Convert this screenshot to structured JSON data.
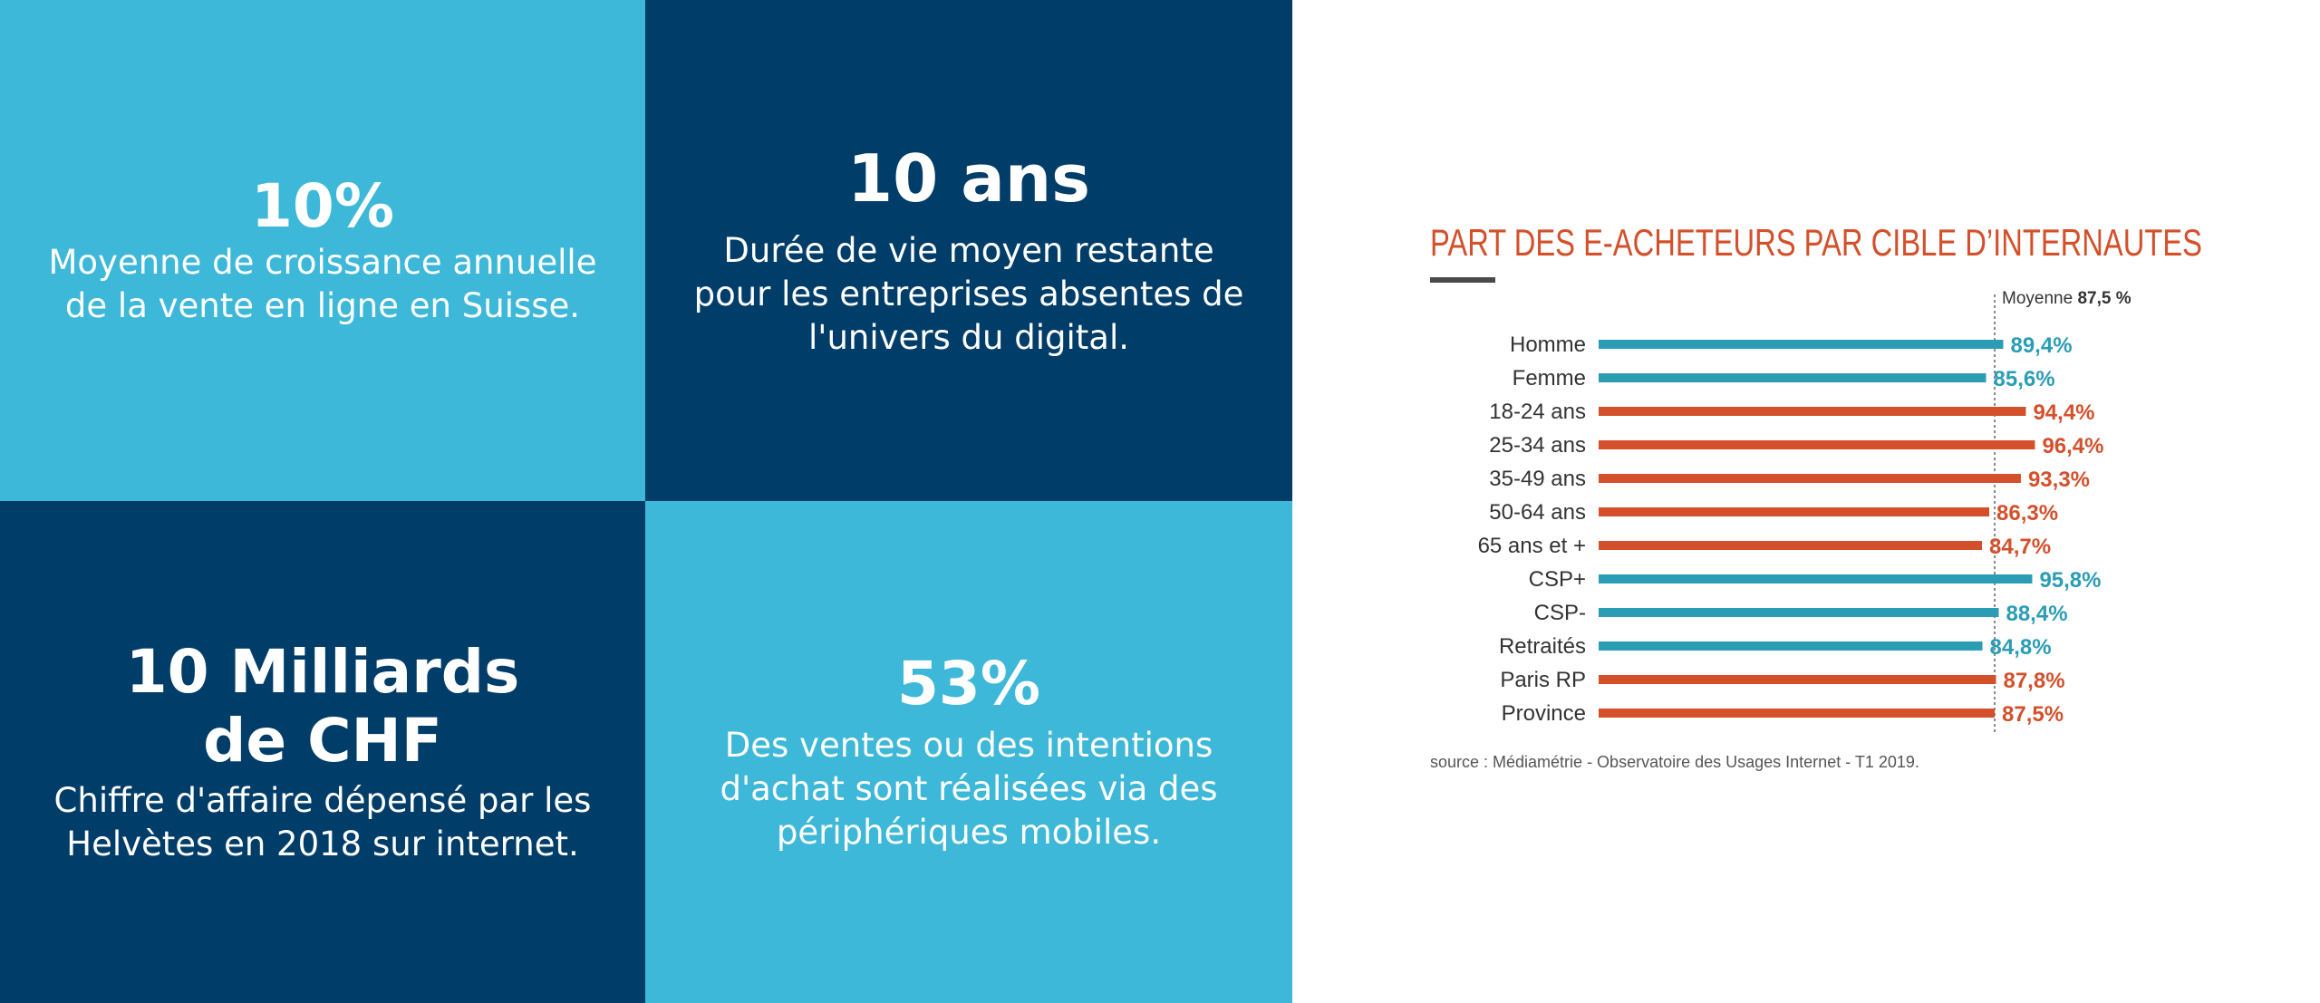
{
  "tiles": [
    {
      "headline": "10%",
      "text": "Moyenne de croissance annuelle\nde la vente en ligne en Suisse.",
      "bg": "#3db8d8"
    },
    {
      "headline": "10 ans",
      "text": "Durée de vie moyen restante\npour les entreprises absentes de\nl'univers du digital.",
      "bg": "#003d69"
    },
    {
      "headline": "10 Milliards\nde CHF",
      "text": "Chiffre d'affaire dépensé par les\nHelvètes en 2018 sur internet.",
      "bg": "#003d69"
    },
    {
      "headline": "53%",
      "text": "Des ventes ou des intentions\nd'achat sont réalisées via des\npériphériques mobiles.",
      "bg": "#3db8d8"
    }
  ],
  "chart_data": {
    "type": "bar",
    "orientation": "horizontal",
    "title": "PART DES E-ACHETEURS PAR CIBLE D’INTERNAUTES",
    "categories": [
      "Homme",
      "Femme",
      "18-24 ans",
      "25-34 ans",
      "35-49 ans",
      "50-64 ans",
      "65 ans et +",
      "CSP+",
      "CSP-",
      "Retraités",
      "Paris RP",
      "Province"
    ],
    "values": [
      89.4,
      85.6,
      94.4,
      96.4,
      93.3,
      86.3,
      84.7,
      95.8,
      88.4,
      84.8,
      87.8,
      87.5
    ],
    "value_labels": [
      "89,4%",
      "85,6%",
      "94,4%",
      "96,4%",
      "93,3%",
      "86,3%",
      "84,7%",
      "95,8%",
      "88,4%",
      "84,8%",
      "87,8%",
      "87,5%"
    ],
    "bar_colors": [
      "#2a9db5",
      "#2a9db5",
      "#d4502b",
      "#d4502b",
      "#d4502b",
      "#d4502b",
      "#d4502b",
      "#2a9db5",
      "#2a9db5",
      "#2a9db5",
      "#d4502b",
      "#d4502b"
    ],
    "average": {
      "label": "Moyenne",
      "value": 87.5,
      "value_label": "87,5 %"
    },
    "source": "source : Médiamétrie - Observatoire des Usages Internet - T1 2019.",
    "xlim": [
      0,
      100
    ],
    "title_color": "#d4502b",
    "title_rule_color": "#4a4a4a",
    "grid": false
  }
}
